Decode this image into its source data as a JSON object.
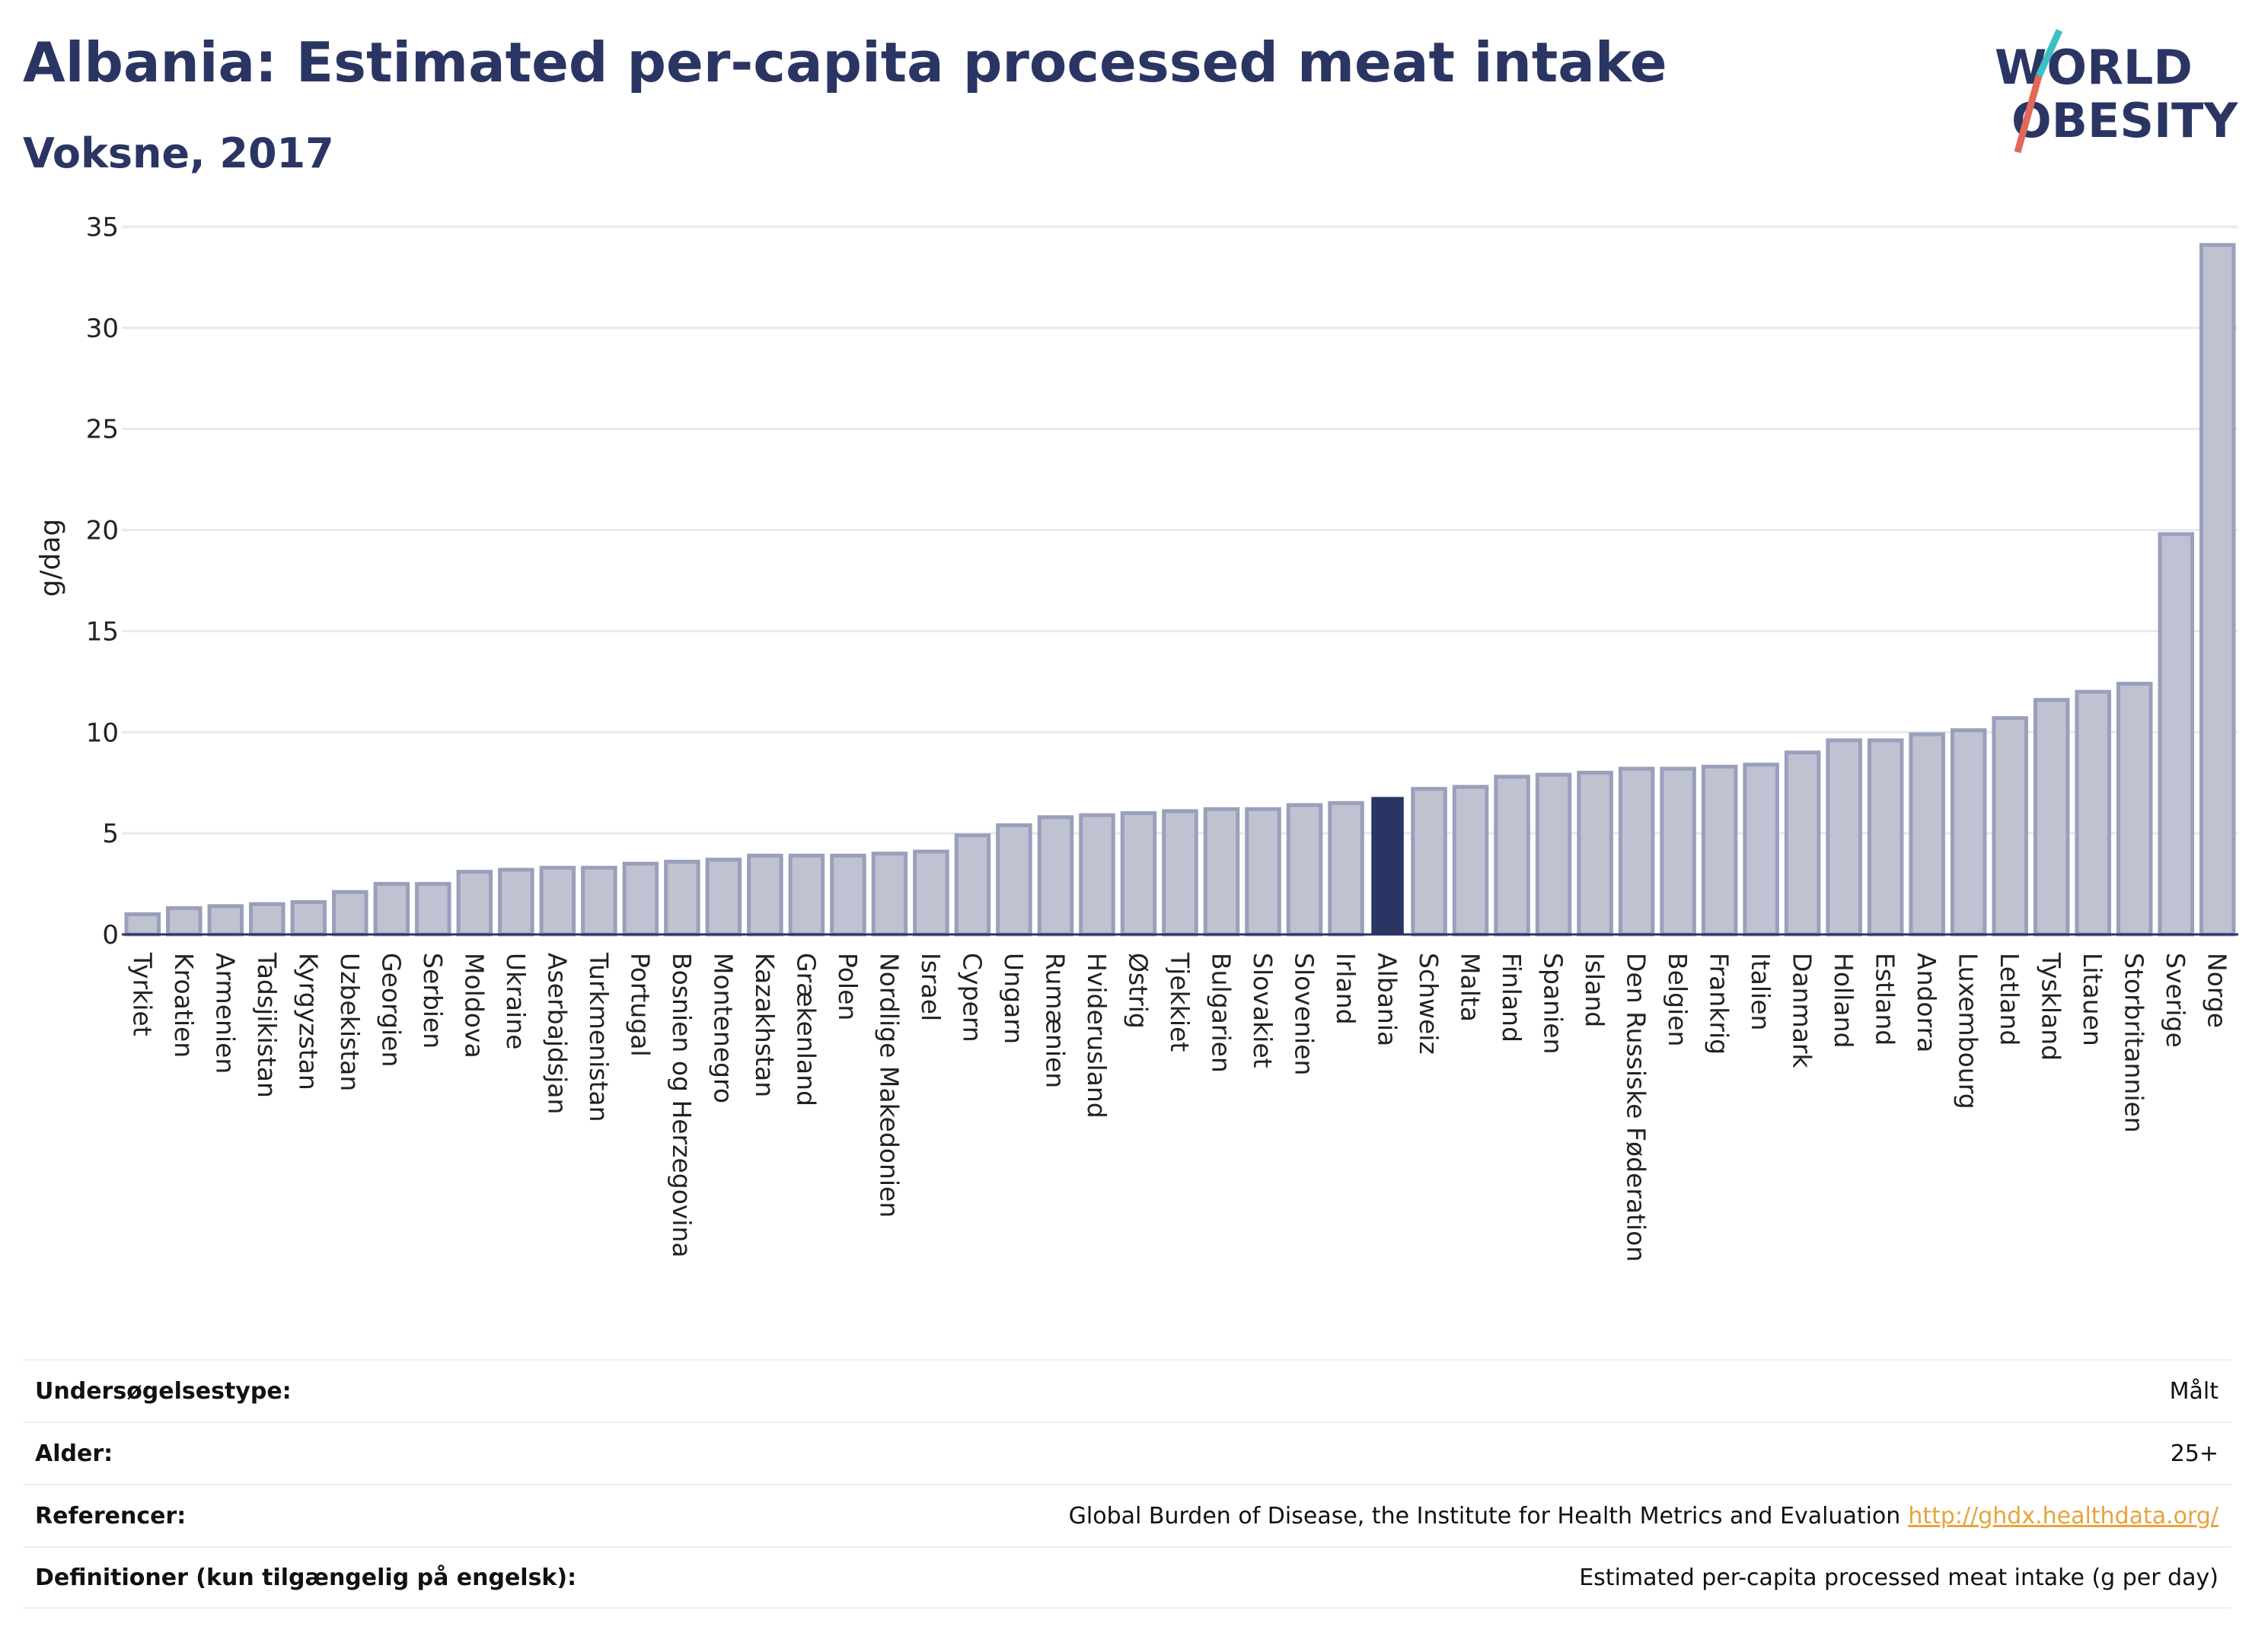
{
  "header": {
    "title": "Albania: Estimated per-capita processed meat intake",
    "subtitle": "Voksne, 2017"
  },
  "logo": {
    "line1": "WORLD",
    "line2": "OBESITY",
    "accent_teal": "#3cbfc0",
    "accent_coral": "#e2685a",
    "text_color": "#2b3564"
  },
  "colors": {
    "bar": "#bfc2d1",
    "bar_stroke": "#9a9fbb",
    "highlight": "#2b3564",
    "grid": "#e6e9ee",
    "axis": "#2b3564"
  },
  "chart_data": {
    "type": "bar",
    "title": "Albania: Estimated per-capita processed meat intake",
    "subtitle": "Voksne, 2017",
    "ylabel": "g/dag",
    "xlabel": "",
    "ylim": [
      0,
      35
    ],
    "yticks": [
      0,
      5,
      10,
      15,
      20,
      25,
      30,
      35
    ],
    "grid": true,
    "highlight": "Albania",
    "categories": [
      "Tyrkiet",
      "Kroatien",
      "Armenien",
      "Tadsjikistan",
      "Kyrgyzstan",
      "Uzbekistan",
      "Georgien",
      "Serbien",
      "Moldova",
      "Ukraine",
      "Aserbajdsjan",
      "Turkmenistan",
      "Portugal",
      "Bosnien og Herzegovina",
      "Montenegro",
      "Kazakhstan",
      "Grækenland",
      "Polen",
      "Nordlige Makedonien",
      "Israel",
      "Cypern",
      "Ungarn",
      "Rumænien",
      "Hviderusland",
      "Østrig",
      "Tjekkiet",
      "Bulgarien",
      "Slovakiet",
      "Slovenien",
      "Irland",
      "Albania",
      "Schweiz",
      "Malta",
      "Finland",
      "Spanien",
      "Island",
      "Den Russiske Føderation",
      "Belgien",
      "Frankrig",
      "Italien",
      "Danmark",
      "Holland",
      "Estland",
      "Andorra",
      "Luxembourg",
      "Letland",
      "Tyskland",
      "Litauen",
      "Storbritannien",
      "Sverige",
      "Norge"
    ],
    "values": [
      1.0,
      1.3,
      1.4,
      1.5,
      1.6,
      2.1,
      2.5,
      2.5,
      3.1,
      3.2,
      3.3,
      3.3,
      3.5,
      3.6,
      3.7,
      3.9,
      3.9,
      3.9,
      4.0,
      4.1,
      4.9,
      5.4,
      5.8,
      5.9,
      6.0,
      6.1,
      6.2,
      6.2,
      6.4,
      6.5,
      6.8,
      7.2,
      7.3,
      7.8,
      7.9,
      8.0,
      8.2,
      8.2,
      8.3,
      8.4,
      9.0,
      9.6,
      9.6,
      9.9,
      10.1,
      10.7,
      11.6,
      12.0,
      12.4,
      19.8,
      34.1
    ]
  },
  "meta": [
    {
      "label": "Undersøgelsestype:",
      "value": "Målt"
    },
    {
      "label": "Alder:",
      "value": "25+"
    },
    {
      "label": "Referencer:",
      "value": "Global Burden of Disease, the Institute for Health Metrics and Evaluation",
      "link": "http://ghdx.healthdata.org/"
    },
    {
      "label": "Definitioner (kun tilgængelig på engelsk):",
      "value": "Estimated per-capita processed meat intake (g per day)"
    }
  ]
}
